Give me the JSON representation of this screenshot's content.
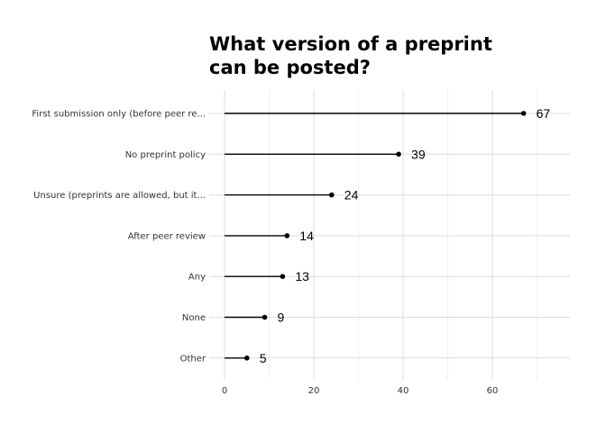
{
  "chart_data": {
    "type": "lollipop",
    "title": "What version of a preprint\ncan be posted?",
    "xlabel": "",
    "ylabel": "",
    "xlim": [
      0,
      77
    ],
    "x_ticks": [
      0,
      20,
      40,
      60
    ],
    "grid": true,
    "categories": [
      "First submission only (before peer re...",
      "No preprint policy",
      "Unsure (preprints are allowed, but it...",
      "After peer review",
      "Any",
      "None",
      "Other"
    ],
    "values": [
      67,
      39,
      24,
      14,
      13,
      9,
      5
    ],
    "data_labels": [
      "67",
      "39",
      "24",
      "14",
      "13",
      "9",
      "5"
    ]
  }
}
